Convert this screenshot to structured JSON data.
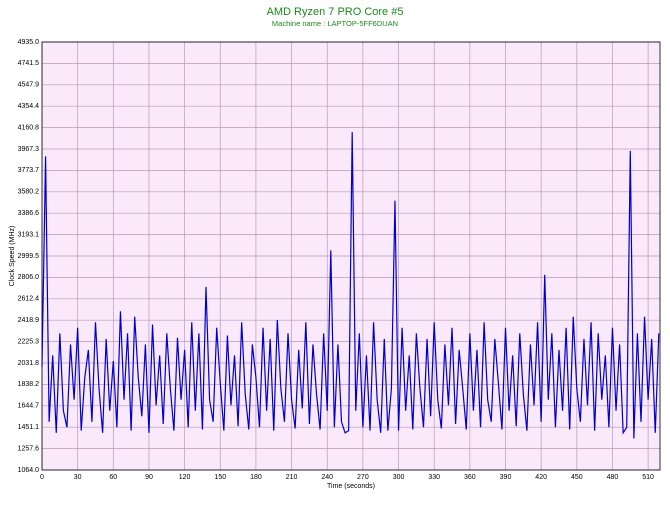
{
  "chart_data": {
    "type": "line",
    "title": "AMD Ryzen 7 PRO Core #5",
    "subtitle": "Machine name : LAPTOP-5FF6DUAN",
    "x_label": "Time (seconds)",
    "y_label": "Clock Speed (MHz)",
    "grid": true,
    "xlim": [
      0,
      520
    ],
    "xticks": [
      0,
      30,
      60,
      90,
      120,
      150,
      180,
      210,
      240,
      270,
      300,
      330,
      360,
      390,
      420,
      450,
      480,
      510
    ],
    "ylim": [
      1064,
      4935
    ],
    "yticks": [
      {
        "value": 1064,
        "label": "1064.0"
      },
      1257.6,
      1451.1,
      1644.7,
      1838.2,
      2031.8,
      2225.3,
      2418.9,
      2612.4,
      {
        "value": 2806,
        "label": "2806.0"
      },
      2999.5,
      3193.1,
      3386.6,
      3580.2,
      3773.7,
      3967.3,
      4160.8,
      4354.4,
      4547.9,
      4741.5,
      {
        "value": 4935,
        "label": "4935.0"
      }
    ],
    "x": [
      0,
      3,
      6,
      9,
      12,
      15,
      18,
      21,
      24,
      27,
      30,
      33,
      36,
      39,
      42,
      45,
      48,
      51,
      54,
      57,
      60,
      63,
      66,
      69,
      72,
      75,
      78,
      81,
      84,
      87,
      90,
      93,
      96,
      99,
      102,
      105,
      108,
      111,
      114,
      117,
      120,
      123,
      126,
      129,
      132,
      135,
      138,
      141,
      144,
      147,
      150,
      153,
      156,
      159,
      162,
      165,
      168,
      171,
      174,
      177,
      180,
      183,
      186,
      189,
      192,
      195,
      198,
      201,
      204,
      207,
      210,
      213,
      216,
      219,
      222,
      225,
      228,
      231,
      234,
      237,
      240,
      243,
      246,
      249,
      252,
      255,
      258,
      261,
      264,
      267,
      270,
      273,
      276,
      279,
      282,
      285,
      288,
      291,
      294,
      297,
      300,
      303,
      306,
      309,
      312,
      315,
      318,
      321,
      324,
      327,
      330,
      333,
      336,
      339,
      342,
      345,
      348,
      351,
      354,
      357,
      360,
      363,
      366,
      369,
      372,
      375,
      378,
      381,
      384,
      387,
      390,
      393,
      396,
      399,
      402,
      405,
      408,
      411,
      414,
      417,
      420,
      423,
      426,
      429,
      432,
      435,
      438,
      441,
      444,
      447,
      450,
      453,
      456,
      459,
      462,
      465,
      468,
      471,
      474,
      477,
      480,
      483,
      486,
      489,
      492,
      495,
      498,
      501,
      504,
      507,
      510,
      513,
      516,
      519
    ],
    "series": [
      {
        "name": "Clock Speed",
        "color": "#0000cc",
        "values": [
          2000,
          3900,
          1500,
          2100,
          1400,
          2300,
          1600,
          1450,
          2200,
          1700,
          2350,
          1420,
          1900,
          2150,
          1500,
          2400,
          1800,
          1400,
          2250,
          1600,
          2050,
          1450,
          2500,
          1700,
          2300,
          1420,
          2450,
          1900,
          1550,
          2200,
          1400,
          2380,
          1650,
          2100,
          1480,
          2300,
          1800,
          1420,
          2260,
          1700,
          2150,
          1450,
          2400,
          1600,
          2300,
          1430,
          2720,
          1700,
          1500,
          2350,
          1850,
          1420,
          2280,
          1650,
          2100,
          1460,
          2400,
          1750,
          1430,
          2200,
          1900,
          1450,
          2350,
          1600,
          2250,
          1420,
          2420,
          1800,
          1500,
          2300,
          1700,
          1440,
          2150,
          1620,
          2400,
          1480,
          2200,
          1750,
          1430,
          2300,
          1600,
          3050,
          1450,
          2200,
          1500,
          1400,
          1420,
          4120,
          1600,
          2300,
          1450,
          2100,
          1420,
          2400,
          1700,
          1400,
          2250,
          1420,
          1800,
          3500,
          1420,
          2350,
          1600,
          2100,
          1430,
          2300,
          1800,
          1450,
          2250,
          1550,
          2400,
          1700,
          1440,
          2200,
          1650,
          2350,
          1480,
          2150,
          1800,
          1430,
          2300,
          1600,
          2150,
          1450,
          2400,
          1700,
          1500,
          2250,
          1850,
          1430,
          2350,
          1600,
          2100,
          1460,
          2300,
          1750,
          1420,
          2200,
          1650,
          2400,
          1500,
          2830,
          1700,
          2300,
          1450,
          2150,
          1600,
          2350,
          1430,
          2450,
          1800,
          1500,
          2250,
          1650,
          2400,
          1420,
          2300,
          1700,
          2100,
          1450,
          2350,
          1600,
          2200,
          1400,
          1450,
          3950,
          1350,
          2300,
          1500,
          2450,
          1700,
          2250,
          1400,
          2300
        ]
      }
    ]
  }
}
